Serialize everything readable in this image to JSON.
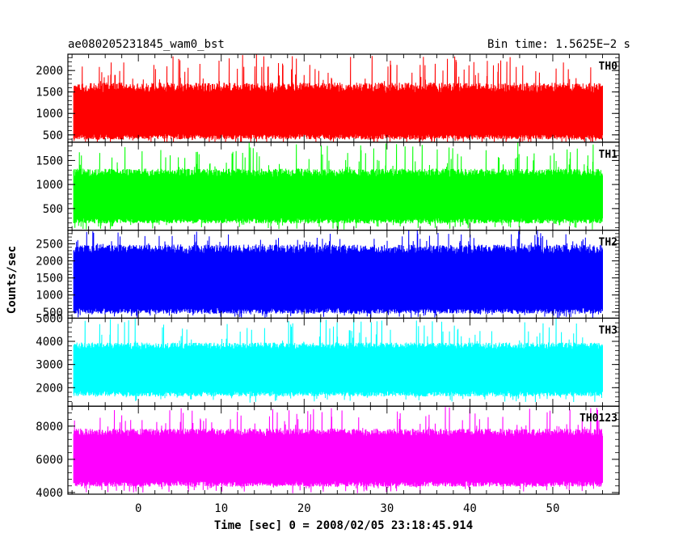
{
  "header": {
    "left": "ae080205231845_wam0_bst",
    "right": "Bin time: 1.5625E−2 s"
  },
  "chart_data": {
    "type": "line",
    "title": "ae080205231845_wam0_bst",
    "subtitle": "Bin time: 1.5625E−2 s",
    "xlabel": "Time [sec] 0 = 2008/02/05 23:18:45.914",
    "ylabel": "Counts/sec",
    "xlim": [
      -8.5,
      58
    ],
    "data_xrange": [
      -7.8,
      56
    ],
    "bin_time_s": 0.015625,
    "xticks": [
      0,
      10,
      20,
      30,
      40,
      50
    ],
    "x_tick_labels": [
      "0",
      "10",
      "20",
      "30",
      "40",
      "50"
    ],
    "grid": false,
    "panels": [
      {
        "name": "TH0",
        "color": "#ff0000",
        "ylim": [
          330,
          2380
        ],
        "yticks": [
          500,
          1000,
          1500,
          2000
        ],
        "y_tick_labels": [
          "500",
          "1000",
          "1500",
          "2000"
        ],
        "band_low": [
          520,
          390
        ],
        "band_high": [
          1480,
          1720
        ],
        "spike_min": 230,
        "spike_max": 2380
      },
      {
        "name": "TH1",
        "color": "#00ff00",
        "ylim": [
          50,
          1880
        ],
        "yticks": [
          500,
          1000,
          1500
        ],
        "y_tick_labels": [
          "500",
          "1000",
          "1500"
        ],
        "band_low": [
          300,
          190
        ],
        "band_high": [
          1160,
          1330
        ],
        "spike_min": 60,
        "spike_max": 1880
      },
      {
        "name": "TH2",
        "color": "#0000ff",
        "ylim": [
          320,
          2900
        ],
        "yticks": [
          500,
          1000,
          1500,
          2000,
          2500
        ],
        "y_tick_labels": [
          "500",
          "1000",
          "1500",
          "2000",
          "2500"
        ],
        "band_low": [
          620,
          450
        ],
        "band_high": [
          2200,
          2480
        ],
        "spike_min": 330,
        "spike_max": 2900
      },
      {
        "name": "TH3",
        "color": "#00ffff",
        "ylim": [
          1200,
          5000
        ],
        "yticks": [
          2000,
          3000,
          4000,
          5000
        ],
        "y_tick_labels": [
          "2000",
          "3000",
          "4000",
          "5000"
        ],
        "band_low": [
          1850,
          1620
        ],
        "band_high": [
          3650,
          3950
        ],
        "spike_min": 1350,
        "spike_max": 5000
      },
      {
        "name": "TH0123",
        "color": "#ff00ff",
        "ylim": [
          3900,
          9200
        ],
        "yticks": [
          4000,
          6000,
          8000
        ],
        "y_tick_labels": [
          "4000",
          "6000",
          "8000"
        ],
        "band_low": [
          4700,
          4350
        ],
        "band_high": [
          7400,
          7850
        ],
        "spike_min": 3950,
        "spike_max": 9200
      }
    ]
  }
}
